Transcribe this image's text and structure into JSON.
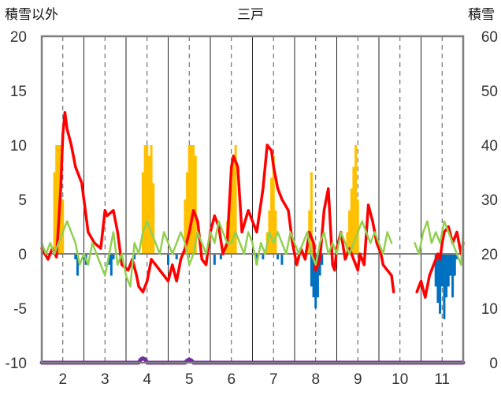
{
  "chart_data": {
    "type": "line",
    "title": "三戸",
    "ylabel_left": "積雪以外",
    "ylabel_right": "積雪",
    "ylim_left": [
      -10,
      20
    ],
    "ylim_right": [
      0,
      60
    ],
    "yticks_left": [
      "20",
      "15",
      "10",
      "5",
      "0",
      "-5",
      "-10"
    ],
    "yticks_right": [
      "60",
      "50",
      "40",
      "30",
      "20",
      "10",
      "0"
    ],
    "xticks": [
      "2",
      "3",
      "4",
      "5",
      "6",
      "7",
      "8",
      "9",
      "10",
      "11"
    ],
    "xlim": [
      1.5,
      11.5
    ],
    "grid": true,
    "colors": {
      "max_temp": "#ff0000",
      "temp_line": "#92d050",
      "snow_bar": "#ffc000",
      "neg_bar": "#0070c0",
      "bottom_line": "#7030a0",
      "frame": "#000000"
    },
    "series": [
      {
        "key": "max_temp",
        "axis": "left",
        "x": [
          1.5,
          1.65,
          1.75,
          1.85,
          1.95,
          2.0,
          2.05,
          2.1,
          2.2,
          2.3,
          2.45,
          2.6,
          2.75,
          2.9,
          3.0,
          3.05,
          3.2,
          3.3,
          3.4,
          3.55,
          3.65,
          3.75,
          3.8,
          3.9,
          4.0,
          4.1,
          4.2,
          4.3,
          4.4,
          4.5,
          4.6,
          4.7,
          4.8,
          4.9,
          5.0,
          5.1,
          5.2,
          5.3,
          5.4,
          5.5,
          5.6,
          5.7,
          5.8,
          5.9,
          6.0,
          6.05,
          6.15,
          6.25,
          6.4,
          6.5,
          6.6,
          6.75,
          6.85,
          6.95,
          7.0,
          7.1,
          7.2,
          7.35,
          7.45,
          7.55,
          7.65,
          7.75,
          7.85,
          7.95,
          8.0,
          8.1,
          8.2,
          8.3,
          8.4,
          8.45,
          8.5,
          8.6,
          8.7,
          8.8,
          8.9,
          9.0,
          9.05,
          9.15,
          9.25,
          9.35,
          9.45,
          9.55,
          9.6,
          9.7,
          9.8,
          9.85
        ],
        "y": [
          0.5,
          -0.5,
          0.5,
          -0.3,
          6,
          11,
          13,
          11.5,
          10,
          8,
          6.5,
          2,
          1,
          0.5,
          4,
          3.5,
          4,
          2,
          -1,
          -1.5,
          -0.5,
          -2,
          -3,
          -3.5,
          -2.5,
          -0.5,
          -1,
          -1.5,
          -2,
          -2.5,
          -1,
          -2.5,
          -0.5,
          0.5,
          2,
          4,
          3,
          -0.5,
          -1,
          2,
          3.5,
          2.5,
          0,
          1,
          8,
          9,
          8,
          2,
          4,
          3,
          2,
          6,
          10,
          9.5,
          8,
          6,
          5,
          4,
          1,
          -1,
          0.5,
          -0.5,
          2,
          1,
          -1.5,
          -0.5,
          4,
          6,
          -1,
          -1.5,
          0.5,
          2,
          -0.5,
          0.5,
          -0.5,
          -1.5,
          0,
          -1,
          4.5,
          3,
          1,
          0,
          -1,
          -1.5,
          -2,
          -3.5
        ]
      },
      {
        "key": "max_temp_b",
        "axis": "left",
        "x": [
          10.4,
          10.5,
          10.6,
          10.7,
          10.8,
          10.9,
          10.95,
          11.0,
          11.05,
          11.15,
          11.25,
          11.35,
          11.45,
          11.5
        ],
        "y": [
          -3.5,
          -2.5,
          -4,
          -2,
          -1,
          0,
          -0.5,
          1,
          2,
          2.5,
          1,
          2,
          0,
          1
        ]
      },
      {
        "key": "temp_line",
        "axis": "left",
        "x": [
          1.5,
          1.6,
          1.7,
          1.8,
          1.9,
          2.0,
          2.1,
          2.2,
          2.3,
          2.4,
          2.5,
          2.6,
          2.7,
          2.8,
          2.9,
          3.0,
          3.1,
          3.2,
          3.3,
          3.4,
          3.5,
          3.6,
          3.7,
          3.8,
          3.9,
          4.0,
          4.1,
          4.2,
          4.3,
          4.4,
          4.5,
          4.6,
          4.7,
          4.8,
          4.9,
          5.0,
          5.1,
          5.2,
          5.3,
          5.4,
          5.5,
          5.6,
          5.7,
          5.8,
          5.9,
          6.0,
          6.1,
          6.2,
          6.3,
          6.4,
          6.5,
          6.6,
          6.7,
          6.8,
          6.9,
          7.0,
          7.1,
          7.2,
          7.3,
          7.4,
          7.5,
          7.6,
          7.7,
          7.8,
          7.9,
          8.0,
          8.1,
          8.2,
          8.3,
          8.4,
          8.5,
          8.6,
          8.7,
          8.8,
          8.9,
          9.0,
          9.1,
          9.2,
          9.3,
          9.4,
          9.5,
          9.6,
          9.7,
          9.8
        ],
        "y": [
          1,
          0,
          1,
          0,
          1,
          2,
          3,
          2,
          1,
          -1,
          0,
          -1,
          1,
          0,
          -1,
          -2,
          0,
          2,
          -1,
          0,
          -2,
          -3,
          1,
          0,
          2,
          3,
          2,
          1,
          0,
          2,
          1,
          0,
          1,
          2,
          1,
          -1,
          0,
          2,
          1,
          0,
          2,
          1,
          3,
          2,
          1,
          1,
          2,
          1,
          0,
          2,
          1,
          -1,
          1,
          0,
          2,
          1,
          2,
          1,
          0,
          2,
          1,
          0,
          1,
          2,
          0,
          -1,
          1,
          2,
          0,
          1,
          0,
          2,
          1,
          0,
          1,
          2,
          3,
          2,
          1,
          2,
          1,
          0,
          2,
          1
        ]
      },
      {
        "key": "temp_line_b",
        "axis": "left",
        "x": [
          10.35,
          10.45,
          10.55,
          10.65,
          10.75,
          10.85,
          10.95,
          11.05,
          11.15,
          11.25,
          11.35,
          11.45,
          11.5
        ],
        "y": [
          1,
          0,
          2,
          3,
          1,
          2,
          1,
          3,
          2,
          1,
          0,
          -1,
          2
        ]
      },
      {
        "key": "snow_bar",
        "axis": "right",
        "kind": "bar",
        "x": [
          1.8,
          1.85,
          1.9,
          1.95,
          2.0,
          3.9,
          3.95,
          4.0,
          4.05,
          4.1,
          4.15,
          4.9,
          4.95,
          5.0,
          5.05,
          5.1,
          5.15,
          5.9,
          5.95,
          6.0,
          6.05,
          6.1,
          6.85,
          6.9,
          6.95,
          7.0,
          7.05,
          7.85,
          7.9,
          8.75,
          8.8,
          8.85,
          8.9,
          8.95,
          9.0
        ],
        "y": [
          35,
          40,
          40,
          40,
          30,
          35,
          40,
          40,
          38,
          40,
          33,
          30,
          35,
          40,
          40,
          40,
          38,
          26,
          30,
          33,
          38,
          40,
          24,
          28,
          34,
          38,
          28,
          28,
          35,
          24,
          28,
          32,
          36,
          40,
          30
        ]
      },
      {
        "key": "neg_bar",
        "axis": "left",
        "kind": "bar",
        "x": [
          2.3,
          2.35,
          2.5,
          2.55,
          3.1,
          3.15,
          3.2,
          3.7,
          4.5,
          4.7,
          5.6,
          5.75,
          6.6,
          6.75,
          7.1,
          7.2,
          7.9,
          7.95,
          8.0,
          8.05,
          8.1,
          8.15,
          10.85,
          10.9,
          10.95,
          11.0,
          11.05,
          11.1,
          11.15,
          11.2,
          11.25,
          11.3,
          11.35
        ],
        "y": [
          -0.5,
          -2,
          -0.5,
          -1,
          -1,
          -2,
          -0.5,
          -0.5,
          -1,
          -0.5,
          -1,
          -0.5,
          -1,
          -0.5,
          -0.5,
          -1,
          -3,
          -4,
          -5,
          -4,
          -2,
          -1,
          -3,
          -4.5,
          -5.5,
          -3,
          -6,
          -4,
          -3,
          -2,
          -4,
          -2,
          -0.5
        ]
      },
      {
        "key": "bottom_line",
        "axis": "left",
        "x": [
          1.5,
          3.8,
          3.85,
          3.9,
          3.95,
          4.0,
          4.9,
          4.95,
          5.0,
          5.05,
          5.1,
          11.5
        ],
        "y": [
          -10,
          -10,
          -9.7,
          -9.6,
          -9.7,
          -10,
          -10,
          -9.8,
          -9.7,
          -9.8,
          -10,
          -10
        ]
      }
    ]
  }
}
